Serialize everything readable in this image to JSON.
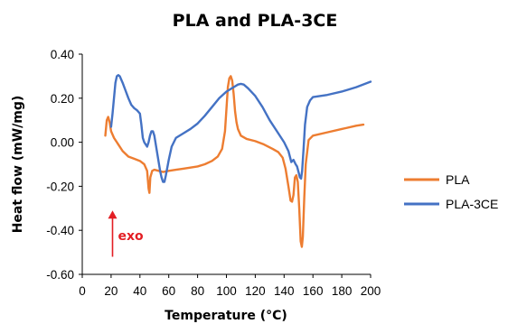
{
  "chart_data": {
    "type": "line",
    "title": "PLA and PLA-3CE",
    "xlabel": "Temperature (°C)",
    "ylabel": "Heat flow (mW/mg)",
    "xlim": [
      0,
      200
    ],
    "ylim": [
      -0.6,
      0.4
    ],
    "xticks": [
      0,
      20,
      40,
      60,
      80,
      100,
      120,
      140,
      160,
      180,
      200
    ],
    "yticks": [
      0.4,
      0.2,
      0.0,
      -0.2,
      -0.4,
      -0.6
    ],
    "ytick_labels": [
      "0.40",
      "0.20",
      "0.00",
      "-0.20",
      "-0.40",
      "-0.60"
    ],
    "grid": false,
    "legend_position": "right",
    "colors": {
      "PLA": "#ed7d31",
      "PLA-3CE": "#4472c4",
      "annotation": "#e31e24"
    },
    "annotation": {
      "text": "exo",
      "x": 21,
      "y_from": -0.52,
      "y_to": -0.31,
      "direction": "up"
    },
    "series": [
      {
        "name": "PLA",
        "color": "#ed7d31",
        "points": [
          [
            16,
            0.03
          ],
          [
            17,
            0.1
          ],
          [
            18,
            0.115
          ],
          [
            19,
            0.09
          ],
          [
            20,
            0.05
          ],
          [
            22,
            0.02
          ],
          [
            25,
            -0.01
          ],
          [
            28,
            -0.04
          ],
          [
            32,
            -0.065
          ],
          [
            36,
            -0.075
          ],
          [
            40,
            -0.085
          ],
          [
            43,
            -0.1
          ],
          [
            45,
            -0.13
          ],
          [
            46,
            -0.21
          ],
          [
            46.6,
            -0.23
          ],
          [
            47.2,
            -0.16
          ],
          [
            48.5,
            -0.13
          ],
          [
            50,
            -0.125
          ],
          [
            53,
            -0.13
          ],
          [
            56,
            -0.135
          ],
          [
            60,
            -0.13
          ],
          [
            65,
            -0.125
          ],
          [
            70,
            -0.12
          ],
          [
            75,
            -0.115
          ],
          [
            80,
            -0.11
          ],
          [
            85,
            -0.1
          ],
          [
            90,
            -0.085
          ],
          [
            94,
            -0.065
          ],
          [
            97,
            -0.03
          ],
          [
            99,
            0.05
          ],
          [
            100,
            0.15
          ],
          [
            101,
            0.25
          ],
          [
            102,
            0.29
          ],
          [
            103,
            0.3
          ],
          [
            104,
            0.28
          ],
          [
            105,
            0.22
          ],
          [
            106,
            0.14
          ],
          [
            107,
            0.09
          ],
          [
            108,
            0.06
          ],
          [
            110,
            0.03
          ],
          [
            114,
            0.015
          ],
          [
            120,
            0.005
          ],
          [
            126,
            -0.01
          ],
          [
            132,
            -0.03
          ],
          [
            136,
            -0.045
          ],
          [
            139,
            -0.07
          ],
          [
            141,
            -0.12
          ],
          [
            143,
            -0.2
          ],
          [
            144.5,
            -0.265
          ],
          [
            145.5,
            -0.27
          ],
          [
            146.5,
            -0.24
          ],
          [
            147.5,
            -0.16
          ],
          [
            148.5,
            -0.15
          ],
          [
            149.5,
            -0.18
          ],
          [
            150.5,
            -0.3
          ],
          [
            151.5,
            -0.45
          ],
          [
            152.3,
            -0.475
          ],
          [
            153,
            -0.43
          ],
          [
            154,
            -0.25
          ],
          [
            155,
            -0.1
          ],
          [
            157,
            0.01
          ],
          [
            160,
            0.03
          ],
          [
            170,
            0.045
          ],
          [
            180,
            0.06
          ],
          [
            190,
            0.075
          ],
          [
            195,
            0.08
          ]
        ]
      },
      {
        "name": "PLA-3CE",
        "color": "#4472c4",
        "points": [
          [
            20,
            0.07
          ],
          [
            21,
            0.13
          ],
          [
            22,
            0.2
          ],
          [
            23,
            0.27
          ],
          [
            24,
            0.3
          ],
          [
            25,
            0.305
          ],
          [
            26,
            0.3
          ],
          [
            28,
            0.27
          ],
          [
            30,
            0.235
          ],
          [
            32,
            0.2
          ],
          [
            34,
            0.17
          ],
          [
            36,
            0.155
          ],
          [
            38,
            0.145
          ],
          [
            40,
            0.13
          ],
          [
            41,
            0.08
          ],
          [
            42,
            0.02
          ],
          [
            43,
            0.0
          ],
          [
            44,
            -0.01
          ],
          [
            45,
            -0.02
          ],
          [
            46,
            0.0
          ],
          [
            47,
            0.03
          ],
          [
            48,
            0.05
          ],
          [
            49,
            0.05
          ],
          [
            50,
            0.03
          ],
          [
            52,
            -0.05
          ],
          [
            54,
            -0.13
          ],
          [
            55,
            -0.16
          ],
          [
            56,
            -0.18
          ],
          [
            57,
            -0.18
          ],
          [
            58,
            -0.15
          ],
          [
            60,
            -0.08
          ],
          [
            62,
            -0.02
          ],
          [
            65,
            0.02
          ],
          [
            70,
            0.04
          ],
          [
            75,
            0.06
          ],
          [
            80,
            0.085
          ],
          [
            85,
            0.12
          ],
          [
            90,
            0.16
          ],
          [
            95,
            0.2
          ],
          [
            100,
            0.23
          ],
          [
            105,
            0.25
          ],
          [
            108,
            0.262
          ],
          [
            110,
            0.265
          ],
          [
            112,
            0.262
          ],
          [
            115,
            0.245
          ],
          [
            120,
            0.21
          ],
          [
            125,
            0.16
          ],
          [
            130,
            0.1
          ],
          [
            135,
            0.05
          ],
          [
            140,
            0.0
          ],
          [
            143,
            -0.04
          ],
          [
            145,
            -0.09
          ],
          [
            146.5,
            -0.08
          ],
          [
            148,
            -0.1
          ],
          [
            149,
            -0.11
          ],
          [
            150,
            -0.135
          ],
          [
            151,
            -0.16
          ],
          [
            151.8,
            -0.165
          ],
          [
            152.5,
            -0.13
          ],
          [
            153.5,
            -0.03
          ],
          [
            154.5,
            0.08
          ],
          [
            156,
            0.16
          ],
          [
            158,
            0.19
          ],
          [
            160,
            0.205
          ],
          [
            170,
            0.215
          ],
          [
            180,
            0.23
          ],
          [
            190,
            0.25
          ],
          [
            200,
            0.275
          ]
        ]
      }
    ]
  }
}
